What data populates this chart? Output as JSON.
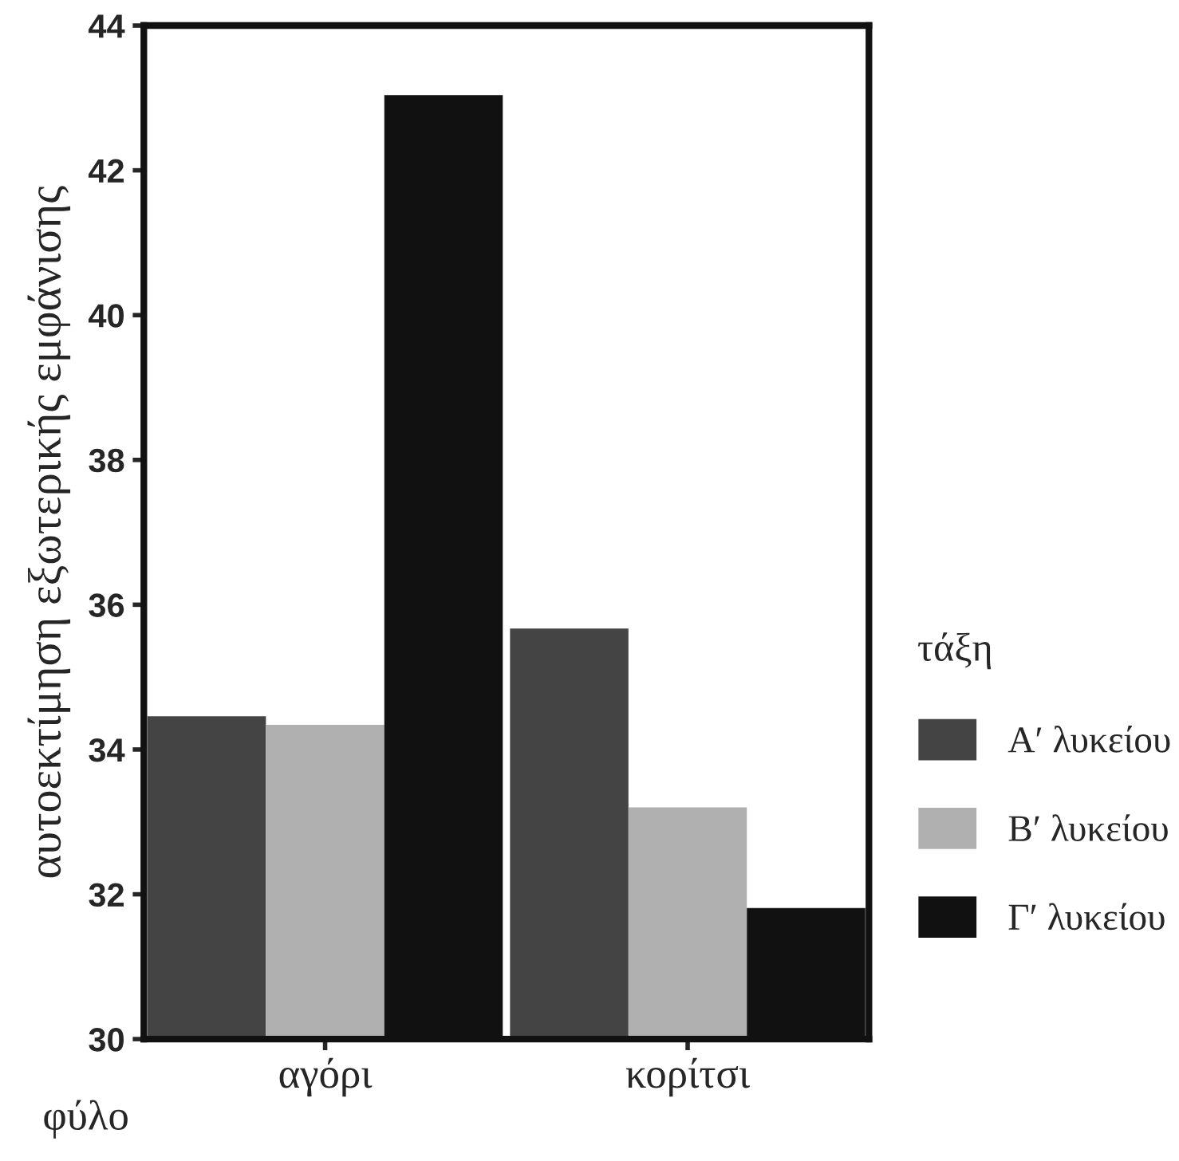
{
  "chart_data": {
    "type": "bar",
    "xlabel": "φύλο",
    "ylabel": "αυτοεκτίμηση εξωτερικής εμφάνισης",
    "legend_title": "τάξη",
    "categories": [
      "αγόρι",
      "κορίτσι"
    ],
    "series": [
      {
        "name": "Α′ λυκείου",
        "color": "#444444",
        "values": [
          34.46,
          35.67
        ]
      },
      {
        "name": "Β′ λυκείου",
        "color": "#b0b0b0",
        "values": [
          34.34,
          33.2
        ]
      },
      {
        "name": "Γ′ λυκείου",
        "color": "#111111",
        "values": [
          43.04,
          31.81
        ]
      }
    ],
    "ylim": [
      30,
      44
    ],
    "yticks": [
      30,
      32,
      34,
      36,
      38,
      40,
      42,
      44
    ],
    "grid": false,
    "legend": "right"
  }
}
